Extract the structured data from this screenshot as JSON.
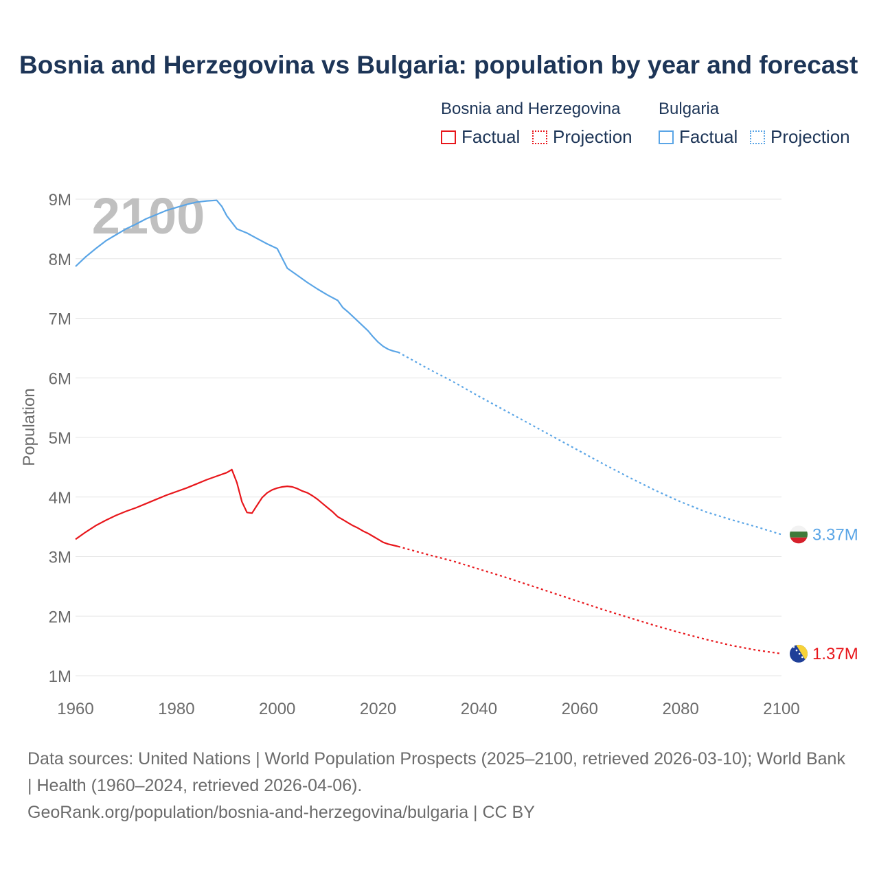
{
  "title": "Bosnia and Herzegovina vs Bulgaria: population by year and forecast",
  "legend": {
    "groups": [
      {
        "name": "Bosnia and Herzegovina",
        "color": "#e8161b",
        "factual_label": "Factual",
        "projection_label": "Projection"
      },
      {
        "name": "Bulgaria",
        "color": "#5aa5e6",
        "factual_label": "Factual",
        "projection_label": "Projection"
      }
    ]
  },
  "year_watermark": "2100",
  "footer": {
    "sources": "Data sources: United Nations | World Population Prospects (2025–2100, retrieved 2026-03-10); World Bank | Health (1960–2024, retrieved 2026-04-06).",
    "link": "GeoRank.org/population/bosnia-and-herzegovina/bulgaria | CC BY"
  },
  "chart_data": {
    "type": "line",
    "ylabel": "Population",
    "xlabel": "",
    "xlim": [
      1960,
      2100
    ],
    "ylim": [
      1000000,
      9000000
    ],
    "x_ticks": [
      1960,
      1980,
      2000,
      2020,
      2040,
      2060,
      2080,
      2100
    ],
    "x_tick_labels": [
      "1960",
      "1980",
      "2000",
      "2020",
      "2040",
      "2060",
      "2080",
      "2100"
    ],
    "y_ticks": [
      1000000,
      2000000,
      3000000,
      4000000,
      5000000,
      6000000,
      7000000,
      8000000,
      9000000
    ],
    "y_tick_labels": [
      "1M",
      "2M",
      "3M",
      "4M",
      "5M",
      "6M",
      "7M",
      "8M",
      "9M"
    ],
    "grid": true,
    "series": [
      {
        "name": "Bosnia and Herzegovina",
        "color": "#e8161b",
        "end_label": "1.37M",
        "flag": "bosnia-and-herzegovina-flag",
        "factual": {
          "x": [
            1960,
            1962,
            1964,
            1966,
            1968,
            1970,
            1972,
            1974,
            1976,
            1978,
            1980,
            1982,
            1984,
            1986,
            1988,
            1990,
            1991,
            1992,
            1993,
            1994,
            1995,
            1996,
            1997,
            1998,
            1999,
            2000,
            2001,
            2002,
            2003,
            2004,
            2005,
            2006,
            2007,
            2008,
            2009,
            2010,
            2011,
            2012,
            2013,
            2014,
            2015,
            2016,
            2017,
            2018,
            2019,
            2020,
            2021,
            2022,
            2023,
            2024
          ],
          "y": [
            3290000,
            3410000,
            3520000,
            3610000,
            3690000,
            3760000,
            3820000,
            3890000,
            3960000,
            4030000,
            4090000,
            4150000,
            4220000,
            4290000,
            4350000,
            4410000,
            4460000,
            4240000,
            3920000,
            3740000,
            3730000,
            3860000,
            3990000,
            4070000,
            4120000,
            4150000,
            4170000,
            4180000,
            4170000,
            4140000,
            4100000,
            4070000,
            4020000,
            3960000,
            3890000,
            3820000,
            3750000,
            3670000,
            3620000,
            3570000,
            3520000,
            3480000,
            3430000,
            3390000,
            3340000,
            3290000,
            3240000,
            3210000,
            3190000,
            3170000
          ]
        },
        "projection": {
          "x": [
            2024,
            2030,
            2035,
            2040,
            2045,
            2050,
            2055,
            2060,
            2065,
            2070,
            2075,
            2080,
            2085,
            2090,
            2095,
            2100
          ],
          "y": [
            3170000,
            3030000,
            2920000,
            2790000,
            2660000,
            2520000,
            2380000,
            2240000,
            2100000,
            1970000,
            1840000,
            1720000,
            1610000,
            1510000,
            1430000,
            1370000
          ]
        }
      },
      {
        "name": "Bulgaria",
        "color": "#5aa5e6",
        "end_label": "3.37M",
        "flag": "bulgaria-flag",
        "factual": {
          "x": [
            1960,
            1962,
            1964,
            1966,
            1968,
            1970,
            1972,
            1974,
            1976,
            1978,
            1980,
            1982,
            1984,
            1986,
            1988,
            1989,
            1990,
            1992,
            1994,
            1996,
            1998,
            2000,
            2002,
            2004,
            2006,
            2008,
            2010,
            2012,
            2013,
            2014,
            2016,
            2018,
            2019,
            2020,
            2021,
            2022,
            2023,
            2024
          ],
          "y": [
            7870000,
            8030000,
            8170000,
            8300000,
            8400000,
            8500000,
            8580000,
            8670000,
            8740000,
            8810000,
            8860000,
            8910000,
            8950000,
            8970000,
            8980000,
            8880000,
            8720000,
            8500000,
            8430000,
            8340000,
            8250000,
            8170000,
            7840000,
            7720000,
            7600000,
            7490000,
            7390000,
            7300000,
            7180000,
            7110000,
            6950000,
            6790000,
            6690000,
            6600000,
            6530000,
            6480000,
            6450000,
            6430000
          ]
        },
        "projection": {
          "x": [
            2024,
            2030,
            2035,
            2040,
            2045,
            2050,
            2055,
            2060,
            2065,
            2070,
            2075,
            2080,
            2085,
            2090,
            2095,
            2100
          ],
          "y": [
            6430000,
            6150000,
            5930000,
            5690000,
            5460000,
            5230000,
            5000000,
            4770000,
            4540000,
            4320000,
            4110000,
            3920000,
            3750000,
            3620000,
            3500000,
            3370000
          ]
        }
      }
    ]
  }
}
